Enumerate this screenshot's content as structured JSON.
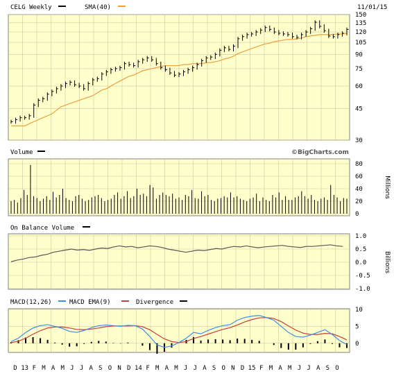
{
  "colors": {
    "plot_bg": "#ffffcc",
    "grid": "#c8c8a0",
    "border": "#808080",
    "price": "#000000",
    "sma": "#e8a040",
    "volume": "#000000",
    "obv": "#555555",
    "macd": "#3c8ce8",
    "macd_ema": "#c83c3c",
    "divergence": "#000000"
  },
  "header": {
    "ticker_label": "CELG Weekly",
    "sma_label": "SMA(40)",
    "date": "11/01/15"
  },
  "watermark": "©BigCharts.com",
  "chart_data": [
    {
      "type": "ohlc",
      "title": "CELG Weekly",
      "ylim": [
        30,
        150
      ],
      "scale": "log",
      "y_ticks": [
        "150",
        "135",
        "120",
        "105",
        "90",
        "75",
        "60",
        "45",
        "30"
      ],
      "series": [
        {
          "name": "CELG Weekly",
          "values": [
            38,
            39,
            40,
            40,
            41,
            47,
            50,
            51,
            54,
            56,
            58,
            60,
            62,
            63,
            61,
            60,
            58,
            62,
            65,
            66,
            70,
            72,
            74,
            75,
            76,
            80,
            79,
            78,
            82,
            84,
            86,
            84,
            80,
            76,
            74,
            71,
            69,
            70,
            72,
            74,
            76,
            79,
            83,
            86,
            87,
            90,
            95,
            98,
            96,
            100,
            110,
            113,
            116,
            117,
            120,
            123,
            127,
            124,
            120,
            118,
            117,
            116,
            113,
            112,
            116,
            120,
            125,
            136,
            129,
            122,
            114,
            113,
            116,
            118,
            124
          ]
        },
        {
          "name": "SMA(40)",
          "values": [
            36,
            36,
            36,
            36,
            37,
            38,
            39,
            40,
            41,
            42,
            44,
            46,
            47,
            48,
            49,
            50,
            51,
            52,
            53,
            55,
            57,
            58,
            60,
            62,
            64,
            66,
            68,
            69,
            71,
            73,
            74,
            75,
            76,
            77,
            78,
            78,
            78,
            78,
            79,
            79,
            80,
            80,
            80,
            81,
            81,
            82,
            83,
            85,
            86,
            88,
            91,
            93,
            95,
            97,
            99,
            101,
            103,
            104,
            106,
            107,
            108,
            109,
            109,
            110,
            111,
            113,
            114,
            115,
            116,
            116,
            116,
            116,
            117,
            117,
            118
          ]
        }
      ]
    },
    {
      "type": "bar",
      "title": "Volume",
      "ylabel": "Millions",
      "ylim": [
        0,
        80
      ],
      "y_ticks": [
        "80",
        "60",
        "40",
        "20",
        "0"
      ],
      "series": [
        {
          "name": "Volume",
          "values": [
            20,
            22,
            18,
            25,
            38,
            30,
            78,
            28,
            25,
            20,
            24,
            28,
            22,
            35,
            26,
            30,
            40,
            25,
            22,
            20,
            28,
            30,
            24,
            20,
            22,
            26,
            28,
            30,
            25,
            20,
            22,
            24,
            30,
            34,
            24,
            28,
            36,
            25,
            28,
            40,
            30,
            32,
            28,
            46,
            42,
            24,
            30,
            34,
            30,
            28,
            32,
            24,
            26,
            22,
            30,
            28,
            38,
            25,
            24,
            36,
            28,
            30,
            22,
            20,
            24,
            25,
            28,
            26,
            34,
            26,
            28,
            24,
            22,
            20,
            24,
            26,
            32,
            20,
            26,
            22,
            20,
            30,
            26,
            34,
            22,
            28,
            22,
            22,
            26,
            28,
            36,
            28,
            24,
            30,
            22,
            20,
            24,
            26,
            22,
            46,
            30,
            26,
            20,
            25,
            24
          ]
        }
      ]
    },
    {
      "type": "line",
      "title": "On Balance Volume",
      "ylabel": "Billions",
      "ylim": [
        -1.0,
        1.0
      ],
      "y_ticks": [
        "1.0",
        "0.5",
        "0.0",
        "-0.5",
        "-1.0"
      ],
      "series": [
        {
          "name": "On Balance Volume",
          "values": [
            0.02,
            0.08,
            0.12,
            0.18,
            0.2,
            0.26,
            0.3,
            0.38,
            0.42,
            0.46,
            0.5,
            0.46,
            0.48,
            0.45,
            0.5,
            0.54,
            0.52,
            0.58,
            0.62,
            0.58,
            0.6,
            0.55,
            0.58,
            0.62,
            0.6,
            0.56,
            0.5,
            0.46,
            0.42,
            0.38,
            0.42,
            0.46,
            0.44,
            0.48,
            0.52,
            0.5,
            0.56,
            0.6,
            0.58,
            0.62,
            0.58,
            0.55,
            0.58,
            0.6,
            0.62,
            0.64,
            0.6,
            0.58,
            0.56,
            0.6,
            0.6,
            0.62,
            0.64,
            0.66,
            0.62,
            0.6
          ]
        }
      ]
    },
    {
      "type": "line",
      "title": "MACD(12,26)",
      "ylim": [
        -2.5,
        10
      ],
      "y_ticks": [
        "10",
        "5",
        "0"
      ],
      "series": [
        {
          "name": "MACD(12,26)",
          "values": [
            0.5,
            1.5,
            3.2,
            4.5,
            5.2,
            5.5,
            5.0,
            4.4,
            3.5,
            3.2,
            3.8,
            4.6,
            5.2,
            5.4,
            5.2,
            5.0,
            5.3,
            5.2,
            4.2,
            2.0,
            -0.5,
            -1.2,
            -0.8,
            0.2,
            1.5,
            3.2,
            2.8,
            3.8,
            4.6,
            5.2,
            5.5,
            6.8,
            7.6,
            8.0,
            8.2,
            7.6,
            6.8,
            5.0,
            3.2,
            2.0,
            1.8,
            2.4,
            3.2,
            4.0,
            2.6,
            0.8,
            -0.4
          ]
        },
        {
          "name": "MACD EMA(9)",
          "values": [
            0.2,
            0.6,
            1.5,
            2.7,
            3.7,
            4.5,
            4.8,
            4.8,
            4.5,
            4.1,
            4.0,
            4.2,
            4.5,
            4.9,
            5.1,
            5.1,
            5.1,
            5.2,
            4.9,
            4.0,
            2.6,
            1.3,
            0.5,
            0.2,
            0.5,
            1.4,
            2.0,
            2.7,
            3.4,
            4.1,
            4.6,
            5.4,
            6.3,
            7.0,
            7.5,
            7.6,
            7.3,
            6.4,
            5.1,
            3.9,
            3.0,
            2.6,
            2.6,
            2.9,
            2.8,
            2.0,
            1.0
          ]
        },
        {
          "name": "Divergence",
          "values": [
            0.3,
            0.9,
            1.7,
            1.8,
            1.5,
            1.0,
            0.2,
            -0.4,
            -1.0,
            -0.9,
            -0.2,
            0.4,
            0.7,
            0.5,
            0.1,
            -0.1,
            0.2,
            0.0,
            -0.7,
            -2.0,
            -3.1,
            -2.5,
            -1.3,
            0.0,
            1.0,
            1.8,
            0.8,
            1.1,
            1.2,
            1.1,
            0.9,
            1.4,
            1.3,
            1.0,
            0.7,
            0.0,
            -0.5,
            -1.4,
            -1.9,
            -1.9,
            -1.2,
            -0.2,
            0.6,
            1.1,
            -0.2,
            -1.2,
            -1.4
          ]
        }
      ]
    }
  ],
  "panels": {
    "volume": {
      "label": "Volume"
    },
    "obv": {
      "label": "On Balance Volume"
    },
    "macd": {
      "macd_label": "MACD(12,26)",
      "ema_label": "MACD EMA(9)",
      "div_label": "Divergence"
    }
  },
  "x_axis": {
    "labels": [
      "D",
      "13",
      "F",
      "M",
      "A",
      "M",
      "J",
      "J",
      "A",
      "S",
      "O",
      "N",
      "D",
      "14",
      "F",
      "M",
      "A",
      "M",
      "J",
      "J",
      "A",
      "S",
      "O",
      "N",
      "D",
      "15",
      "F",
      "M",
      "A",
      "M",
      "J",
      "J",
      "A",
      "S",
      "O"
    ]
  }
}
